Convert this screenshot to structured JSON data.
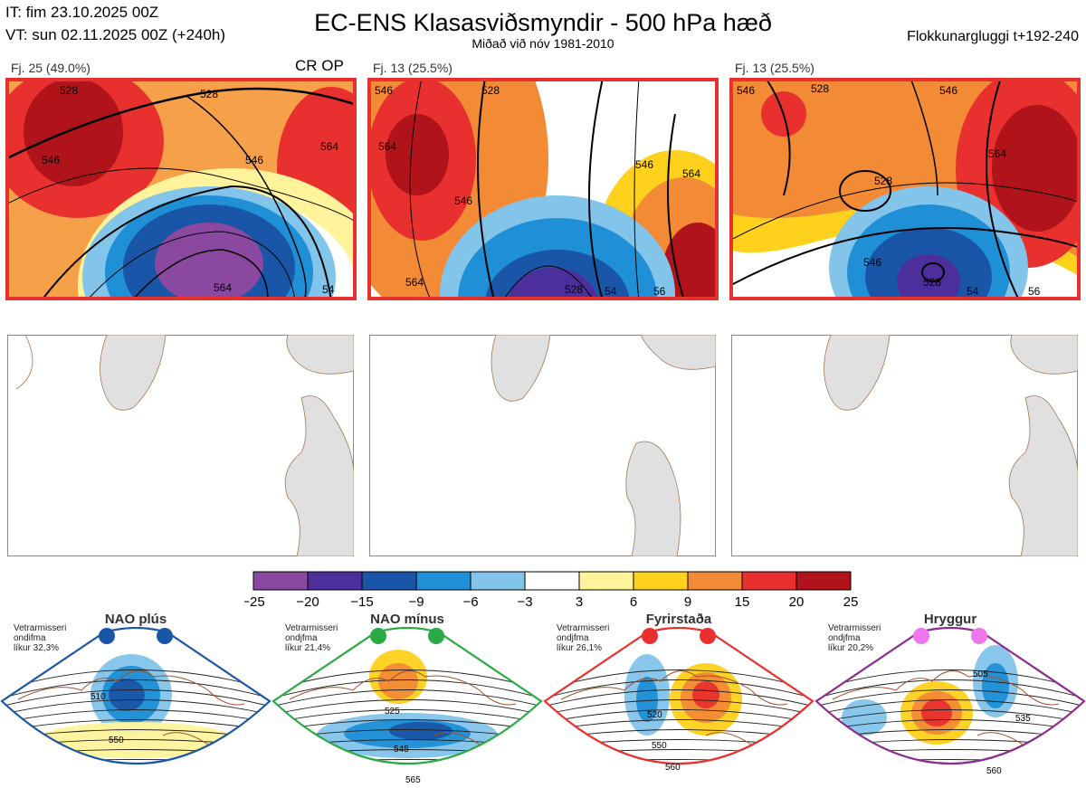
{
  "header": {
    "it_line": "IT: fim 23.10.2025 00Z",
    "vt_line": "VT: sun 02.11.2025 00Z  (+240h)",
    "title": "EC-ENS Klasasviðsmyndir - 500 hPa hæð",
    "subtitle": "Miðað við nóv 1981-2010",
    "window": "Flokkunargluggi t+192-240"
  },
  "clusters": [
    {
      "label": "Fj. 25 (49.0%)",
      "op": "CR OP",
      "contours": [
        "528",
        "546",
        "564",
        "546",
        "528",
        "564",
        "54"
      ]
    },
    {
      "label": "Fj. 13 (25.5%)",
      "op": "",
      "contours": [
        "546",
        "528",
        "564",
        "546",
        "564",
        "546",
        "564",
        "528",
        "54",
        "56"
      ]
    },
    {
      "label": "Fj. 13 (25.5%)",
      "op": "",
      "contours": [
        "546",
        "528",
        "546",
        "564",
        "528",
        "546",
        "528",
        "54",
        "56"
      ]
    }
  ],
  "colorbar": {
    "ticks": [
      "−25",
      "−20",
      "−15",
      "−9",
      "−6",
      "−3",
      "3",
      "6",
      "9",
      "15",
      "20",
      "25"
    ],
    "colors": [
      "#8b48a0",
      "#4d2f9c",
      "#1a56a8",
      "#1f8fd6",
      "#82c4ea",
      "#ffffff",
      "#fff49c",
      "#fdd11c",
      "#f38a36",
      "#e8302e",
      "#b0141a"
    ]
  },
  "regimes": [
    {
      "title": "NAO plús",
      "meta": [
        "Vetrarmisseri",
        "ondifma",
        "líkur 32,3%"
      ],
      "color": "#1a56a8",
      "dot": "#1a56a8",
      "contours": [
        "510",
        "550"
      ]
    },
    {
      "title": "NAO mínus",
      "meta": [
        "Vetrarmisseri",
        "ondjfma",
        "líkur 21,4%"
      ],
      "color": "#2aaa44",
      "dot": "#2aaa44",
      "contours": [
        "525",
        "545",
        "565"
      ]
    },
    {
      "title": "Fyrirstaða",
      "meta": [
        "Vetrarmisseri",
        "ondjfma",
        "líkur 26,1%"
      ],
      "color": "#e8302e",
      "dot": "#e8302e",
      "contours": [
        "520",
        "550",
        "560"
      ]
    },
    {
      "title": "Hryggur",
      "meta": [
        "Vetrarmisseri",
        "ondjfma",
        "líkur 20,2%"
      ],
      "color": "#8b2b8b",
      "dot": "#ee77ee",
      "contours": [
        "505",
        "535",
        "560"
      ]
    }
  ],
  "chart_data": {
    "type": "heatmap",
    "title": "EC-ENS Klasasviðsmyndir - 500 hPa hæð",
    "variable": "500 hPa height anomaly (dam) with contours",
    "colorbar_levels": [
      -25,
      -20,
      -15,
      -9,
      -6,
      -3,
      3,
      6,
      9,
      15,
      20,
      25
    ],
    "clusters": [
      {
        "name": "Fj. 25",
        "percent": 49.0
      },
      {
        "name": "Fj. 13",
        "percent": 25.5
      },
      {
        "name": "Fj. 13",
        "percent": 25.5
      }
    ],
    "regimes": [
      {
        "name": "NAO plús",
        "probability": 32.3
      },
      {
        "name": "NAO mínus",
        "probability": 21.4
      },
      {
        "name": "Fyrirstaða",
        "probability": 26.1
      },
      {
        "name": "Hryggur",
        "probability": 20.2
      }
    ]
  }
}
